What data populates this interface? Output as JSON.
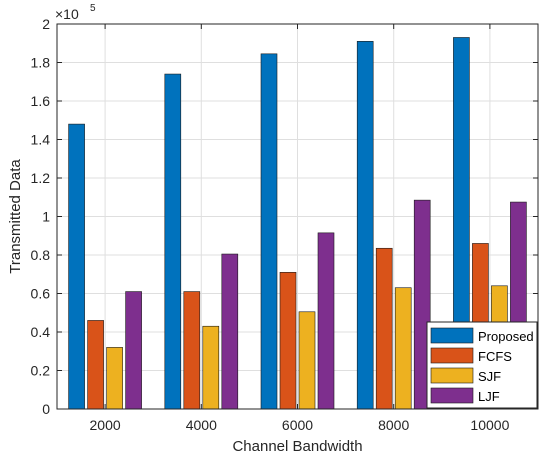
{
  "chart_data": {
    "type": "bar",
    "categories": [
      "2000",
      "4000",
      "6000",
      "8000",
      "10000"
    ],
    "series": [
      {
        "name": "Proposed",
        "values": [
          148000,
          174000,
          184500,
          191000,
          193000
        ],
        "color": "#0072BD"
      },
      {
        "name": "FCFS",
        "values": [
          46000,
          61000,
          71000,
          83500,
          86000
        ],
        "color": "#D95319"
      },
      {
        "name": "SJF",
        "values": [
          32000,
          43000,
          50500,
          63000,
          64000
        ],
        "color": "#EDB120"
      },
      {
        "name": "LJF",
        "values": [
          61000,
          80500,
          91500,
          108500,
          107500
        ],
        "color": "#7E2F8E"
      }
    ],
    "xlabel": "Channel Bandwidth",
    "ylabel": "Transmitted Data",
    "ylim": [
      0,
      200000
    ],
    "yticks": [
      0,
      20000,
      40000,
      60000,
      80000,
      100000,
      120000,
      140000,
      160000,
      180000,
      200000
    ],
    "ytick_labels": [
      "0",
      "0.2",
      "0.4",
      "0.6",
      "0.8",
      "1",
      "1.2",
      "1.4",
      "1.6",
      "1.8",
      "2"
    ],
    "y_exponent_base": "×10",
    "y_exponent_power": "5",
    "grid": true,
    "legend_position": "bottom-right"
  }
}
